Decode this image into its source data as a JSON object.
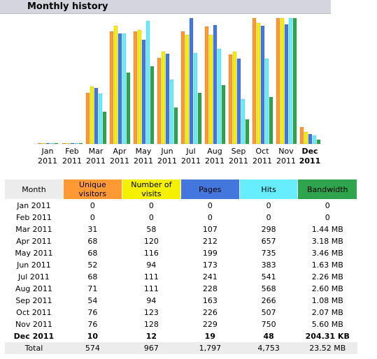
{
  "header": {
    "title": "Monthly history"
  },
  "colors": {
    "title_bg": "#d5d5df",
    "unique_visitors": "#ff9933",
    "visits": "#f4f000",
    "pages": "#4477dd",
    "hits": "#66eeff",
    "bandwidth": "#2ea44f",
    "month_header": "#ececec"
  },
  "table": {
    "headers": {
      "month": "Month",
      "unique_visitors": "Unique visitors",
      "visits": "Number of visits",
      "pages": "Pages",
      "hits": "Hits",
      "bandwidth": "Bandwidth"
    },
    "rows": [
      {
        "month": "Jan 2011",
        "unique_visitors": "0",
        "visits": "0",
        "pages": "0",
        "hits": "0",
        "bandwidth": "0"
      },
      {
        "month": "Feb 2011",
        "unique_visitors": "0",
        "visits": "0",
        "pages": "0",
        "hits": "0",
        "bandwidth": "0"
      },
      {
        "month": "Mar 2011",
        "unique_visitors": "31",
        "visits": "58",
        "pages": "107",
        "hits": "298",
        "bandwidth": "1.44 MB"
      },
      {
        "month": "Apr 2011",
        "unique_visitors": "68",
        "visits": "120",
        "pages": "212",
        "hits": "657",
        "bandwidth": "3.18 MB"
      },
      {
        "month": "May 2011",
        "unique_visitors": "68",
        "visits": "116",
        "pages": "199",
        "hits": "735",
        "bandwidth": "3.46 MB"
      },
      {
        "month": "Jun 2011",
        "unique_visitors": "52",
        "visits": "94",
        "pages": "173",
        "hits": "383",
        "bandwidth": "1.63 MB"
      },
      {
        "month": "Jul 2011",
        "unique_visitors": "68",
        "visits": "111",
        "pages": "241",
        "hits": "541",
        "bandwidth": "2.26 MB"
      },
      {
        "month": "Aug 2011",
        "unique_visitors": "71",
        "visits": "111",
        "pages": "228",
        "hits": "568",
        "bandwidth": "2.60 MB"
      },
      {
        "month": "Sep 2011",
        "unique_visitors": "54",
        "visits": "94",
        "pages": "163",
        "hits": "266",
        "bandwidth": "1.08 MB"
      },
      {
        "month": "Oct 2011",
        "unique_visitors": "76",
        "visits": "123",
        "pages": "226",
        "hits": "507",
        "bandwidth": "2.07 MB"
      },
      {
        "month": "Nov 2011",
        "unique_visitors": "76",
        "visits": "128",
        "pages": "229",
        "hits": "750",
        "bandwidth": "5.60 MB"
      },
      {
        "month": "Dec 2011",
        "unique_visitors": "10",
        "visits": "12",
        "pages": "19",
        "hits": "48",
        "bandwidth": "204.31 KB"
      }
    ],
    "total": {
      "month": "Total",
      "unique_visitors": "574",
      "visits": "967",
      "pages": "1,797",
      "hits": "4,753",
      "bandwidth": "23.52 MB"
    }
  },
  "chart_data": {
    "type": "bar",
    "categories": [
      "Jan 2011",
      "Feb 2011",
      "Mar 2011",
      "Apr 2011",
      "May 2011",
      "Jun 2011",
      "Jul 2011",
      "Aug 2011",
      "Sep 2011",
      "Oct 2011",
      "Nov 2011",
      "Dec 2011"
    ],
    "category_lines": [
      [
        "Jan",
        "2011"
      ],
      [
        "Feb",
        "2011"
      ],
      [
        "Mar",
        "2011"
      ],
      [
        "Apr",
        "2011"
      ],
      [
        "May",
        "2011"
      ],
      [
        "Jun",
        "2011"
      ],
      [
        "Jul",
        "2011"
      ],
      [
        "Aug",
        "2011"
      ],
      [
        "Sep",
        "2011"
      ],
      [
        "Oct",
        "2011"
      ],
      [
        "Nov",
        "2011"
      ],
      [
        "Dec",
        "2011"
      ]
    ],
    "current_category": "Dec 2011",
    "series": [
      {
        "name": "Unique visitors",
        "color": "#ff9933",
        "values": [
          0,
          0,
          31,
          68,
          68,
          52,
          68,
          71,
          54,
          76,
          76,
          10
        ]
      },
      {
        "name": "Number of visits",
        "color": "#f4f000",
        "values": [
          0,
          0,
          58,
          120,
          116,
          94,
          111,
          111,
          94,
          123,
          128,
          12
        ]
      },
      {
        "name": "Pages",
        "color": "#4477dd",
        "values": [
          0,
          0,
          107,
          212,
          199,
          173,
          241,
          228,
          163,
          226,
          229,
          19
        ]
      },
      {
        "name": "Hits",
        "color": "#66eeff",
        "values": [
          0,
          0,
          298,
          657,
          735,
          383,
          541,
          568,
          266,
          507,
          750,
          48
        ]
      },
      {
        "name": "Bandwidth",
        "color": "#2ea44f",
        "values": [
          0,
          0,
          1.44,
          3.18,
          3.46,
          1.63,
          2.26,
          2.6,
          1.08,
          2.07,
          5.6,
          0.2
        ],
        "unit": "MB"
      }
    ],
    "title": "",
    "xlabel": "",
    "ylabel": "",
    "grid": false,
    "legend": "none"
  }
}
